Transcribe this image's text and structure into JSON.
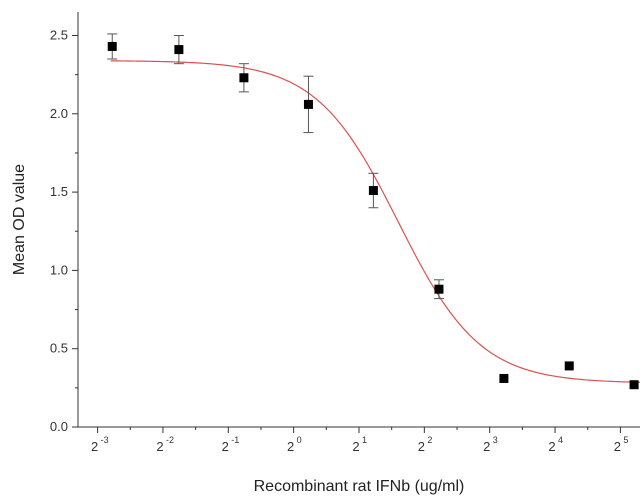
{
  "chart_data": {
    "type": "scatter",
    "xlabel": "Recombinant rat IFNb (ug/ml)",
    "ylabel": "Mean OD value",
    "x_scale": "log2",
    "xlim": [
      -3.3,
      5.3
    ],
    "ylim": [
      0.0,
      2.65
    ],
    "x_ticks": [
      {
        "base": "2",
        "exp": "-3",
        "value": 0.125
      },
      {
        "base": "2",
        "exp": "-2",
        "value": 0.25
      },
      {
        "base": "2",
        "exp": "-1",
        "value": 0.5
      },
      {
        "base": "2",
        "exp": "0",
        "value": 1
      },
      {
        "base": "2",
        "exp": "1",
        "value": 2
      },
      {
        "base": "2",
        "exp": "2",
        "value": 4
      },
      {
        "base": "2",
        "exp": "3",
        "value": 8
      },
      {
        "base": "2",
        "exp": "4",
        "value": 16
      },
      {
        "base": "2",
        "exp": "5",
        "value": 32
      }
    ],
    "y_ticks": [
      "0.0",
      "0.5",
      "1.0",
      "1.5",
      "2.0",
      "2.5"
    ],
    "y_tick_values": [
      0.0,
      0.5,
      1.0,
      1.5,
      2.0,
      2.5
    ],
    "series": [
      {
        "marker": "square",
        "color": "#000000",
        "points": [
          {
            "x": 0.146,
            "y": 2.43,
            "err": 0.08
          },
          {
            "x": 0.296,
            "y": 2.41,
            "err": 0.09
          },
          {
            "x": 0.59,
            "y": 2.23,
            "err": 0.09
          },
          {
            "x": 1.17,
            "y": 2.06,
            "err": 0.18
          },
          {
            "x": 2.33,
            "y": 1.51,
            "err": 0.11
          },
          {
            "x": 4.67,
            "y": 0.88,
            "err": 0.06
          },
          {
            "x": 9.3,
            "y": 0.31,
            "err": 0.0
          },
          {
            "x": 18.6,
            "y": 0.39,
            "err": 0.0
          },
          {
            "x": 37.0,
            "y": 0.27,
            "err": 0.0
          }
        ]
      }
    ],
    "fit": {
      "type": "logistic",
      "color": "#d9534f",
      "top": 2.34,
      "bottom": 0.28,
      "log2_ec50": 1.6,
      "slope": 2.3
    }
  }
}
